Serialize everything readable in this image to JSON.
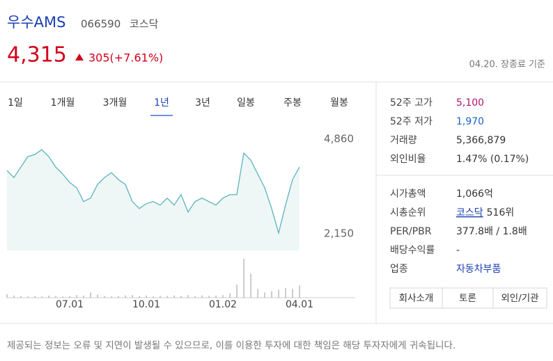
{
  "header": {
    "name": "우수AMS",
    "code": "066590",
    "market": "코스닥"
  },
  "price": {
    "current": "4,315",
    "change": "305(+7.61%)",
    "note": "04.20. 장종료 기준"
  },
  "tabs": [
    "1일",
    "1개월",
    "3개월",
    "1년",
    "3년",
    "일봉",
    "주봉",
    "월봉"
  ],
  "active_tab": 3,
  "chart_data": {
    "type": "line",
    "color": "#5bb3bd",
    "categories": [
      null,
      null,
      null,
      null,
      null,
      null,
      null,
      null,
      null,
      "07.01",
      null,
      null,
      null,
      null,
      null,
      null,
      null,
      null,
      null,
      null,
      "10.01",
      null,
      null,
      null,
      null,
      null,
      null,
      null,
      null,
      null,
      null,
      "01.02",
      null,
      null,
      null,
      null,
      null,
      null,
      null,
      null,
      null,
      null,
      "04.01"
    ],
    "values": [
      3960,
      3760,
      4060,
      4360,
      4420,
      4560,
      4360,
      4060,
      3860,
      3620,
      3470,
      3070,
      3170,
      3560,
      3760,
      3900,
      3700,
      3560,
      3070,
      2870,
      3010,
      3070,
      2970,
      3170,
      2970,
      3270,
      2770,
      3070,
      3170,
      3070,
      2970,
      3170,
      3270,
      3270,
      4460,
      4260,
      3860,
      3470,
      2870,
      2170,
      2970,
      3700,
      4060
    ],
    "ylim": [
      1670,
      5160
    ],
    "yticks": [
      {
        "value": 2150,
        "label": "2,150"
      },
      {
        "value": 4860,
        "label": "4,860"
      }
    ],
    "volume": [
      8,
      5,
      4,
      3,
      4,
      3,
      5,
      4,
      3,
      4,
      6,
      5,
      12,
      7,
      4,
      3,
      4,
      5,
      6,
      4,
      5,
      3,
      4,
      4,
      5,
      4,
      6,
      4,
      5,
      4,
      5,
      6,
      10,
      30,
      89,
      55,
      20,
      12,
      15,
      18,
      22,
      20,
      28
    ],
    "volume_lim": [
      0,
      100
    ]
  },
  "info": {
    "group1": [
      {
        "label": "52주 고가",
        "value": "5,100"
      },
      {
        "label": "52주 저가",
        "value": "1,970"
      },
      {
        "label": "거래량",
        "value": "5,366,879"
      },
      {
        "label": "외인비율",
        "value": "1.47% (0.17%)"
      }
    ],
    "group2": [
      {
        "label": "시가총액",
        "value": "1,066억"
      },
      {
        "label": "시총순위",
        "link": "코스닥",
        "value": "516위"
      },
      {
        "label": "PER/PBR",
        "value": "377.8배 / 1.8배"
      },
      {
        "label": "배당수익률",
        "value": "-"
      },
      {
        "label": "업종",
        "value": "자동차부품"
      }
    ]
  },
  "buttons": [
    "회사소개",
    "토론",
    "외인/기관"
  ],
  "footer": "제공되는 정보는 오류 및 지연이 발생될 수 있으므로, 이를 이용한 투자에 대한 책임은 해당 투자자에게 귀속됩니다."
}
